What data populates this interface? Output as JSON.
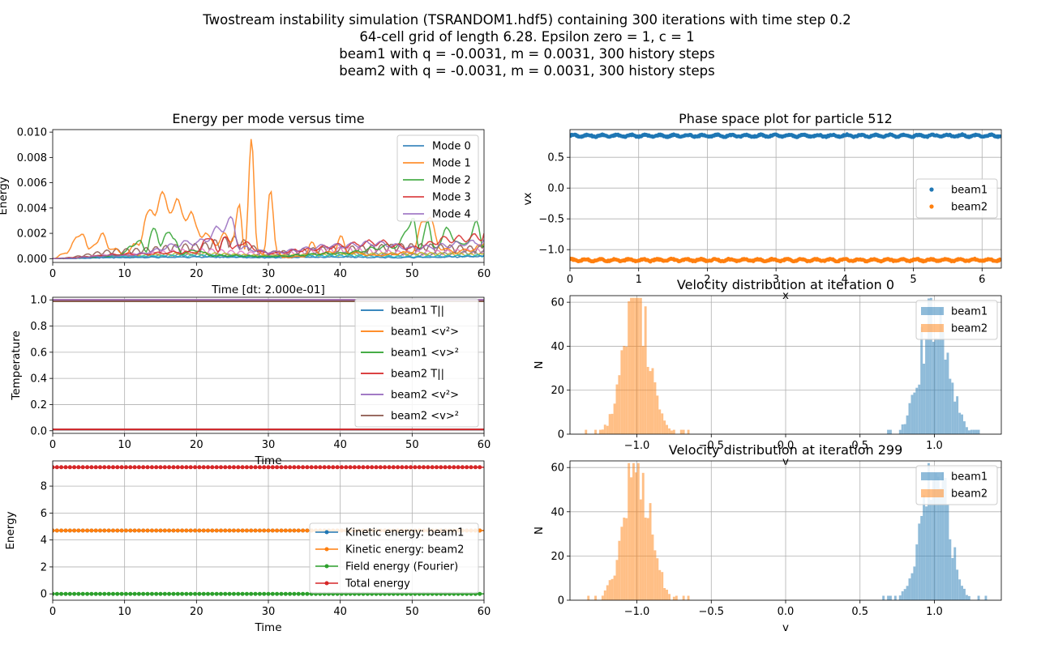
{
  "suptitle": [
    "Twostream instability simulation (TSRANDOM1.hdf5) containing 300 iterations with time step 0.2",
    "64-cell grid of length 6.28. Epsilon zero = 1, c = 1",
    "beam1 with q = -0.0031, m = 0.0031, 300 history steps",
    "beam2 with q = -0.0031, m = 0.0031, 300 history steps"
  ],
  "colors": {
    "c0": "#1f77b4",
    "c1": "#ff7f0e",
    "c2": "#2ca02c",
    "c3": "#d62728",
    "c4": "#9467bd",
    "c5": "#8c564b",
    "c6": "#e377c2",
    "c7": "#7f7f7f",
    "c8": "#bcbd22",
    "c9": "#17becf"
  },
  "chart_data": [
    {
      "id": "energy-modes",
      "type": "line",
      "title": "Energy per mode versus time",
      "xlabel": "Time [dt: 2.000e-01]",
      "ylabel": "Energy",
      "xlim": [
        0,
        60
      ],
      "ylim": [
        -0.0003,
        0.0102
      ],
      "xticks": [
        0,
        10,
        20,
        30,
        40,
        50,
        60
      ],
      "yticks": [
        0.0,
        0.002,
        0.004,
        0.006,
        0.008,
        0.01
      ],
      "ytick_labels": [
        "0.000",
        "0.002",
        "0.004",
        "0.006",
        "0.008",
        "0.010"
      ],
      "grid": false,
      "legend": "top-right",
      "series": [
        {
          "name": "Mode 0",
          "color": "#1f77b4",
          "points": [
            [
              0,
              0
            ],
            [
              10,
              0.0001
            ],
            [
              20,
              0.00015
            ],
            [
              30,
              0.0001
            ],
            [
              40,
              0.00015
            ],
            [
              50,
              0.0001
            ],
            [
              60,
              0.0002
            ]
          ]
        },
        {
          "name": "Mode 1",
          "color": "#ff7f0e",
          "points": [
            [
              0,
              0
            ],
            [
              2,
              0.0006
            ],
            [
              4,
              0.0026
            ],
            [
              5,
              0.0008
            ],
            [
              6,
              0.0016
            ],
            [
              7,
              0.002
            ],
            [
              8,
              0.001
            ],
            [
              10,
              0.0004
            ],
            [
              12,
              0.0015
            ],
            [
              13,
              0.0035
            ],
            [
              14,
              0.0048
            ],
            [
              15,
              0.0053
            ],
            [
              16,
              0.0052
            ],
            [
              17,
              0.0048
            ],
            [
              18,
              0.0045
            ],
            [
              19,
              0.004
            ],
            [
              20,
              0.003
            ],
            [
              21,
              0.0022
            ],
            [
              22,
              0.0018
            ],
            [
              23,
              0.0014
            ],
            [
              24,
              0.0022
            ],
            [
              25,
              0.0018
            ],
            [
              26,
              0.0044
            ],
            [
              26.7,
              0.001
            ],
            [
              27.6,
              0.0098
            ],
            [
              28.5,
              0.001
            ],
            [
              29.3,
              0.0004
            ],
            [
              30.4,
              0.006
            ],
            [
              31.2,
              0.0008
            ],
            [
              32,
              0.0001
            ],
            [
              35,
              0.0002
            ],
            [
              36,
              0.0014
            ],
            [
              37,
              0.0005
            ],
            [
              39,
              0.0006
            ],
            [
              40,
              0.002
            ],
            [
              41,
              0.0006
            ],
            [
              45,
              0.0003
            ],
            [
              50,
              0.0006
            ],
            [
              52,
              0.0042
            ],
            [
              54,
              0.001
            ],
            [
              56,
              0.0006
            ],
            [
              58,
              0.0008
            ],
            [
              60,
              0.0012
            ]
          ]
        },
        {
          "name": "Mode 2",
          "color": "#2ca02c",
          "points": [
            [
              0,
              0
            ],
            [
              9,
              0.0003
            ],
            [
              11,
              0.001
            ],
            [
              12,
              0.002
            ],
            [
              13,
              0.0005
            ],
            [
              14,
              0.0034
            ],
            [
              15,
              0.001
            ],
            [
              16,
              0.003
            ],
            [
              17,
              0.0015
            ],
            [
              18,
              0.0005
            ],
            [
              20,
              0.0008
            ],
            [
              22,
              0.0003
            ],
            [
              30,
              0.0002
            ],
            [
              40,
              0.0005
            ],
            [
              48,
              0.0012
            ],
            [
              50,
              0.0038
            ],
            [
              51,
              0.0008
            ],
            [
              52,
              0.0036
            ],
            [
              53,
              0.001
            ],
            [
              55,
              0.0025
            ],
            [
              57,
              0.0012
            ],
            [
              59,
              0.003
            ],
            [
              60,
              0.001
            ]
          ]
        },
        {
          "name": "Mode 3",
          "color": "#d62728",
          "points": [
            [
              0,
              0
            ],
            [
              10,
              0.0004
            ],
            [
              20,
              0.0006
            ],
            [
              22,
              0.0022
            ],
            [
              23,
              0.0005
            ],
            [
              24,
              0.0025
            ],
            [
              25,
              0.0008
            ],
            [
              26,
              0.0015
            ],
            [
              30,
              0.0005
            ],
            [
              35,
              0.0008
            ],
            [
              40,
              0.0012
            ],
            [
              45,
              0.0015
            ],
            [
              50,
              0.001
            ],
            [
              55,
              0.0018
            ],
            [
              60,
              0.002
            ]
          ]
        },
        {
          "name": "Mode 4",
          "color": "#9467bd",
          "points": [
            [
              0,
              0
            ],
            [
              10,
              0.0003
            ],
            [
              20,
              0.0015
            ],
            [
              25,
              0.0033
            ],
            [
              26,
              0.001
            ],
            [
              30,
              0.0006
            ],
            [
              40,
              0.0012
            ],
            [
              45,
              0.0014
            ],
            [
              50,
              0.001
            ],
            [
              60,
              0.0015
            ]
          ]
        }
      ],
      "extra_series": [
        {
          "color": "#8c564b",
          "points": [
            [
              0,
              0
            ],
            [
              10,
              0.0008
            ],
            [
              20,
              0.0012
            ],
            [
              25,
              0.0018
            ],
            [
              30,
              0.0006
            ],
            [
              40,
              0.001
            ],
            [
              50,
              0.0012
            ],
            [
              60,
              0.001
            ]
          ]
        },
        {
          "color": "#e377c2",
          "points": [
            [
              0,
              0
            ],
            [
              10,
              0.0004
            ],
            [
              20,
              0.0008
            ],
            [
              30,
              0.0005
            ],
            [
              40,
              0.0009
            ],
            [
              50,
              0.0006
            ],
            [
              60,
              0.0008
            ]
          ]
        },
        {
          "color": "#7f7f7f",
          "points": [
            [
              0,
              0
            ],
            [
              10,
              0.0002
            ],
            [
              20,
              0.0004
            ],
            [
              30,
              0.0003
            ],
            [
              40,
              0.0005
            ],
            [
              50,
              0.0004
            ],
            [
              60,
              0.0006
            ]
          ]
        },
        {
          "color": "#bcbd22",
          "points": [
            [
              0,
              0
            ],
            [
              10,
              0.0003
            ],
            [
              20,
              0.0005
            ],
            [
              30,
              0.0003
            ],
            [
              40,
              0.0004
            ],
            [
              50,
              0.0005
            ],
            [
              60,
              0.0004
            ]
          ]
        },
        {
          "color": "#17becf",
          "points": [
            [
              0,
              0
            ],
            [
              10,
              0.0002
            ],
            [
              20,
              0.0003
            ],
            [
              30,
              0.0002
            ],
            [
              40,
              0.0003
            ],
            [
              50,
              0.0002
            ],
            [
              60,
              0.0003
            ]
          ]
        }
      ]
    },
    {
      "id": "temperature",
      "type": "line",
      "title": "",
      "xlabel": "Time",
      "ylabel": "Temperature",
      "xlim": [
        0,
        60
      ],
      "ylim": [
        -0.02,
        1.02
      ],
      "xticks": [
        0,
        10,
        20,
        30,
        40,
        50,
        60
      ],
      "yticks": [
        0.0,
        0.2,
        0.4,
        0.6,
        0.8,
        1.0
      ],
      "ytick_labels": [
        "0.0",
        "0.2",
        "0.4",
        "0.6",
        "0.8",
        "1.0"
      ],
      "grid": true,
      "legend": "top-right",
      "series": [
        {
          "name": "beam1 T||",
          "color": "#1f77b4",
          "y": 0.01
        },
        {
          "name": "beam1 <v²>",
          "color": "#ff7f0e",
          "y": 1.0
        },
        {
          "name": "beam1 <v>²",
          "color": "#2ca02c",
          "y": 0.99
        },
        {
          "name": "beam2 T||",
          "color": "#d62728",
          "y": 0.01
        },
        {
          "name": "beam2 <v²>",
          "color": "#9467bd",
          "y": 1.0
        },
        {
          "name": "beam2 <v>²",
          "color": "#8c564b",
          "y": 0.99
        }
      ]
    },
    {
      "id": "energies",
      "type": "line",
      "title": "",
      "xlabel": "Time",
      "ylabel": "Energy",
      "xlim": [
        0,
        60
      ],
      "ylim": [
        -0.47,
        9.87
      ],
      "xticks": [
        0,
        10,
        20,
        30,
        40,
        50,
        60
      ],
      "yticks": [
        0,
        2,
        4,
        6,
        8
      ],
      "ytick_labels": [
        "0",
        "2",
        "4",
        "6",
        "8"
      ],
      "grid": true,
      "legend": "lower-right",
      "series": [
        {
          "name": "Kinetic energy: beam1",
          "color": "#1f77b4",
          "y": 4.7
        },
        {
          "name": "Kinetic energy: beam2",
          "color": "#ff7f0e",
          "y": 4.7
        },
        {
          "name": "Field energy (Fourier)",
          "color": "#2ca02c",
          "y": 0.0
        },
        {
          "name": "Total energy",
          "color": "#d62728",
          "y": 9.4
        }
      ]
    },
    {
      "id": "phase-space",
      "type": "scatter",
      "title": "Phase space plot for particle 512",
      "xlabel": "x",
      "ylabel": "vx",
      "xlim": [
        0,
        6.28
      ],
      "ylim": [
        -1.3,
        0.95
      ],
      "xticks": [
        0,
        1,
        2,
        3,
        4,
        5,
        6
      ],
      "yticks": [
        -1.0,
        -0.5,
        0.0,
        0.5
      ],
      "ytick_labels": [
        "−1.0",
        "−0.5",
        "0.0",
        "0.5"
      ],
      "grid": true,
      "legend": "center-right",
      "series": [
        {
          "name": "beam1",
          "color": "#1f77b4",
          "center": 0.85,
          "spread": 0.02
        },
        {
          "name": "beam2",
          "color": "#ff7f0e",
          "center": -1.17,
          "spread": 0.02
        }
      ]
    },
    {
      "id": "vdist-0",
      "type": "bar",
      "title": "Velocity distribution at iteration 0",
      "xlabel": "v",
      "ylabel": "N",
      "xlim": [
        -1.45,
        1.45
      ],
      "ylim": [
        0,
        63
      ],
      "xticks": [
        -1.0,
        -0.5,
        0.0,
        0.5,
        1.0
      ],
      "xtick_labels": [
        "−1.0",
        "−0.5",
        "0.0",
        "0.5",
        "1.0"
      ],
      "yticks": [
        0,
        20,
        40,
        60
      ],
      "grid": true,
      "legend": "top-right",
      "series": [
        {
          "name": "beam1",
          "color": "#1f77b4",
          "center": 1.0,
          "sigma": 0.09,
          "peak": 60
        },
        {
          "name": "beam2",
          "color": "#ff7f0e",
          "center": -1.0,
          "sigma": 0.09,
          "peak": 60
        }
      ]
    },
    {
      "id": "vdist-299",
      "type": "bar",
      "title": "Velocity distribution at iteration 299",
      "xlabel": "v",
      "ylabel": "N",
      "xlim": [
        -1.45,
        1.45
      ],
      "ylim": [
        0,
        63
      ],
      "xticks": [
        -1.0,
        -0.5,
        0.0,
        0.5,
        1.0
      ],
      "xtick_labels": [
        "−1.0",
        "−0.5",
        "0.0",
        "0.5",
        "1.0"
      ],
      "yticks": [
        0,
        20,
        40,
        60
      ],
      "grid": true,
      "legend": "top-right",
      "series": [
        {
          "name": "beam1",
          "color": "#1f77b4",
          "center": 1.0,
          "sigma": 0.09,
          "peak": 60
        },
        {
          "name": "beam2",
          "color": "#ff7f0e",
          "center": -1.0,
          "sigma": 0.09,
          "peak": 60
        }
      ]
    }
  ]
}
